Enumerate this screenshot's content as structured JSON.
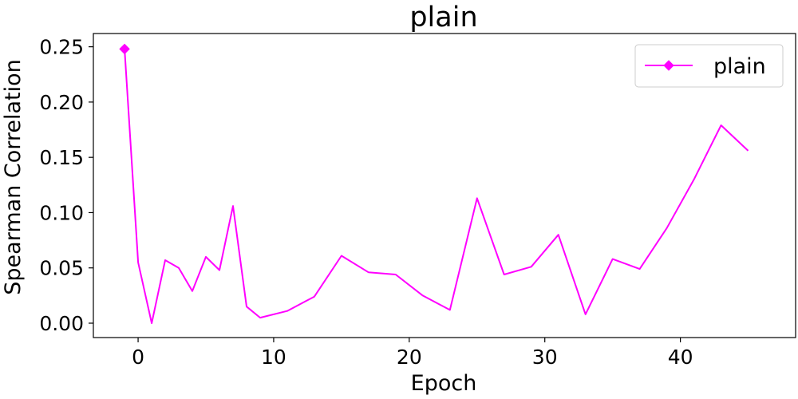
{
  "chart_data": {
    "type": "line",
    "title": "plain",
    "xlabel": "Epoch",
    "ylabel": "Spearman Correlation",
    "xlim": [
      -3.3,
      48.5
    ],
    "ylim": [
      -0.013,
      0.262
    ],
    "xticks": [
      0,
      10,
      20,
      30,
      40
    ],
    "yticks": [
      0.0,
      0.05,
      0.1,
      0.15,
      0.2,
      0.25
    ],
    "xtick_labels": [
      "0",
      "10",
      "20",
      "30",
      "40"
    ],
    "ytick_labels": [
      "0.00",
      "0.05",
      "0.10",
      "0.15",
      "0.20",
      "0.25"
    ],
    "grid": false,
    "legend_position": "top-right",
    "series": [
      {
        "name": "plain",
        "color": "#ff00ff",
        "marker": "diamond",
        "marker_points": [
          -1
        ],
        "x": [
          -1,
          0,
          1,
          2,
          3,
          4,
          5,
          6,
          7,
          8,
          9,
          11,
          13,
          15,
          17,
          19,
          21,
          23,
          25,
          27,
          29,
          31,
          33,
          35,
          37,
          39,
          41,
          43,
          45
        ],
        "y": [
          0.248,
          0.055,
          0.0,
          0.057,
          0.05,
          0.029,
          0.06,
          0.048,
          0.106,
          0.015,
          0.005,
          0.011,
          0.024,
          0.061,
          0.046,
          0.044,
          0.025,
          0.012,
          0.113,
          0.044,
          0.051,
          0.08,
          0.008,
          0.058,
          0.049,
          0.086,
          0.13,
          0.179,
          0.156
        ]
      }
    ]
  }
}
